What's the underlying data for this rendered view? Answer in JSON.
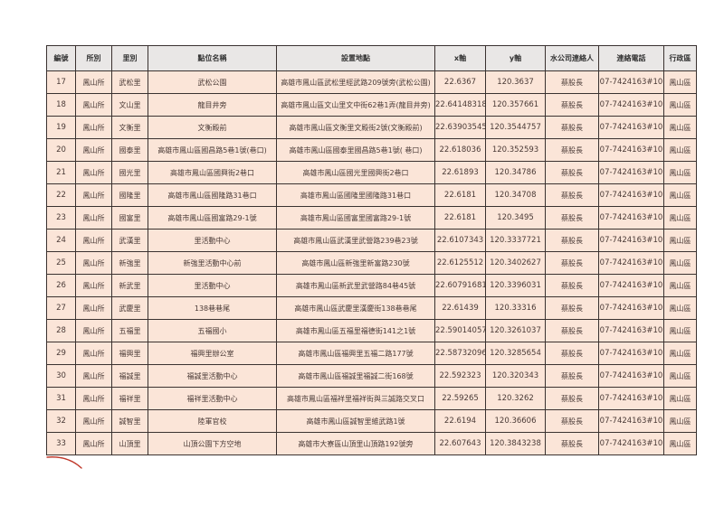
{
  "table": {
    "headers": [
      "編號",
      "所別",
      "里別",
      "點位名稱",
      "設置地點",
      "x軸",
      "y軸",
      "水公司連絡人",
      "連絡電話",
      "行政區"
    ],
    "rows": [
      [
        "17",
        "鳳山所",
        "武松里",
        "武松公園",
        "高雄市鳳山區武松里經武路209號旁(武松公園)",
        "22.6367",
        "120.3637",
        "蔡股長",
        "07-7424163#10",
        "鳳山區"
      ],
      [
        "18",
        "鳳山所",
        "文山里",
        "龍目井旁",
        "高雄市鳳山區文山里文中街62巷1弄(龍目井旁)",
        "22.64148318",
        "120.357661",
        "蔡股長",
        "07-7424163#10",
        "鳳山區"
      ],
      [
        "19",
        "鳳山所",
        "文衡里",
        "文衡殿前",
        "高雄市鳳山區文衡里文殿街2號(文衡殿前)",
        "22.63903545",
        "120.3544757",
        "蔡股長",
        "07-7424163#10",
        "鳳山區"
      ],
      [
        "20",
        "鳳山所",
        "國泰里",
        "高雄市鳳山區國昌路5巷1號(巷口)",
        "高雄市鳳山區國泰里國昌路5巷1號( 巷口)",
        "22.618036",
        "120.352593",
        "蔡股長",
        "07-7424163#10",
        "鳳山區"
      ],
      [
        "21",
        "鳳山所",
        "國光里",
        "高雄市鳳山區國興街2巷口",
        "高雄市鳳山區國光里國興街2巷口",
        "22.61893",
        "120.34786",
        "蔡股長",
        "07-7424163#10",
        "鳳山區"
      ],
      [
        "22",
        "鳳山所",
        "國隆里",
        "高雄市鳳山區國隆路31巷口",
        "高雄市鳳山區國隆里國隆路31巷口",
        "22.6181",
        "120.34708",
        "蔡股長",
        "07-7424163#10",
        "鳳山區"
      ],
      [
        "23",
        "鳳山所",
        "國富里",
        "高雄市鳳山區國富路29-1號",
        "高雄市鳳山區國富里國富路29-1號",
        "22.6181",
        "120.3495",
        "蔡股長",
        "07-7424163#10",
        "鳳山區"
      ],
      [
        "24",
        "鳳山所",
        "武漢里",
        "里活動中心",
        "高雄市鳳山區武漢里武營路239巷23號",
        "22.6107343",
        "120.3337721",
        "蔡股長",
        "07-7424163#10",
        "鳳山區"
      ],
      [
        "25",
        "鳳山所",
        "新強里",
        "新強里活動中心前",
        "高雄市鳳山區新強里新富路230號",
        "22.6125512",
        "120.3402627",
        "蔡股長",
        "07-7424163#10",
        "鳳山區"
      ],
      [
        "26",
        "鳳山所",
        "新武里",
        "里活動中心",
        "高雄市鳳山區新武里武營路84巷45號",
        "22.60791681",
        "120.3396031",
        "蔡股長",
        "07-7424163#10",
        "鳳山區"
      ],
      [
        "27",
        "鳳山所",
        "武慶里",
        "138巷巷尾",
        "高雄市鳳山區武慶里漢慶街138巷巷尾",
        "22.61439",
        "120.33316",
        "蔡股長",
        "07-7424163#10",
        "鳳山區"
      ],
      [
        "28",
        "鳳山所",
        "五福里",
        "五福國小",
        "高雄市鳳山區五福里福德街141之1號",
        "22.59014057",
        "120.3261037",
        "蔡股長",
        "07-7424163#10",
        "鳳山區"
      ],
      [
        "29",
        "鳳山所",
        "福興里",
        "福興里辦公室",
        "高雄市鳳山區福興里五福二路177號",
        "22.58732096",
        "120.3285654",
        "蔡股長",
        "07-7424163#10",
        "鳳山區"
      ],
      [
        "30",
        "鳳山所",
        "福誠里",
        "福誠里活動中心",
        "高雄市鳳山區福誠里福誠二街168號",
        "22.592323",
        "120.320343",
        "蔡股長",
        "07-7424163#10",
        "鳳山區"
      ],
      [
        "31",
        "鳳山所",
        "福祥里",
        "福祥里活動中心",
        "高雄市鳳山區福祥里福祥街與三誠路交叉口",
        "22.59265",
        "120.3262",
        "蔡股長",
        "07-7424163#10",
        "鳳山區"
      ],
      [
        "32",
        "鳳山所",
        "誠智里",
        "陸軍官校",
        "高雄市鳳山區誠智里維武路1號",
        "22.6194",
        "120.36606",
        "蔡股長",
        "07-7424163#10",
        "鳳山區"
      ],
      [
        "33",
        "鳳山所",
        "山頂里",
        "山頂公園下方空地",
        "高雄市大寮區山頂里山頂路192號旁",
        "22.607643",
        "120.3843238",
        "蔡股長",
        "07-7424163#10",
        "鳳山區"
      ]
    ]
  },
  "colors": {
    "header_bg": "#e9e7e6",
    "row_bg": "#fbe5d8",
    "border": "#3a3230",
    "pen_mark": "#c0392b"
  }
}
